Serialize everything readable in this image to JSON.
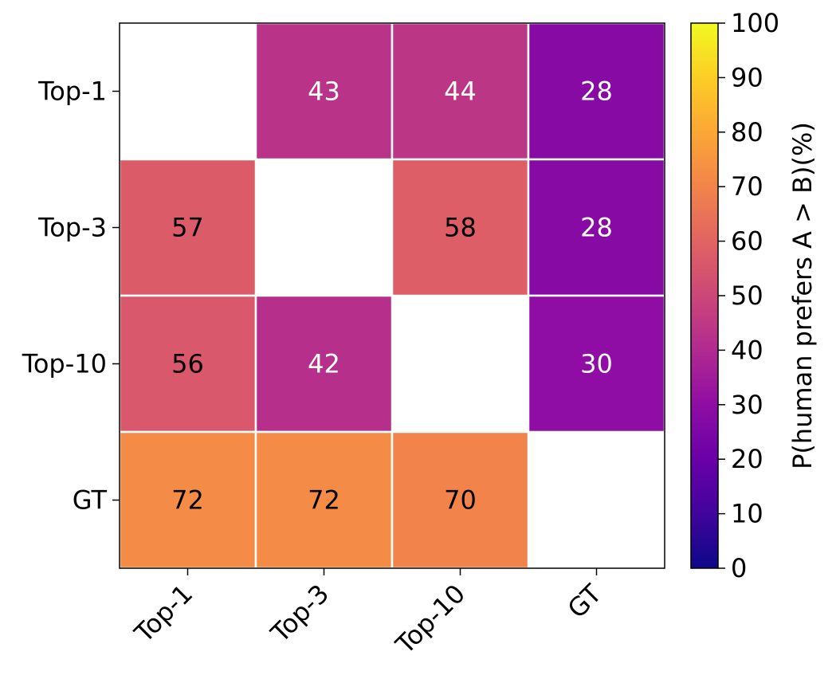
{
  "chart_data": {
    "type": "heatmap",
    "title": "",
    "xlabel": "",
    "ylabel": "",
    "x_categories": [
      "Top-1",
      "Top-3",
      "Top-10",
      "GT"
    ],
    "y_categories": [
      "Top-1",
      "Top-3",
      "Top-10",
      "GT"
    ],
    "values": [
      [
        null,
        43,
        44,
        28
      ],
      [
        57,
        null,
        58,
        28
      ],
      [
        56,
        42,
        null,
        30
      ],
      [
        72,
        72,
        70,
        null
      ]
    ],
    "colorbar": {
      "label": "P(human prefers A > B)(%)",
      "range": [
        0,
        100
      ],
      "ticks": [
        "0",
        "10",
        "20",
        "30",
        "40",
        "50",
        "60",
        "70",
        "80",
        "90",
        "100"
      ],
      "colormap": "plasma"
    },
    "cell_text_color_dark": "#000000",
    "cell_text_color_light": "#ffffff"
  }
}
